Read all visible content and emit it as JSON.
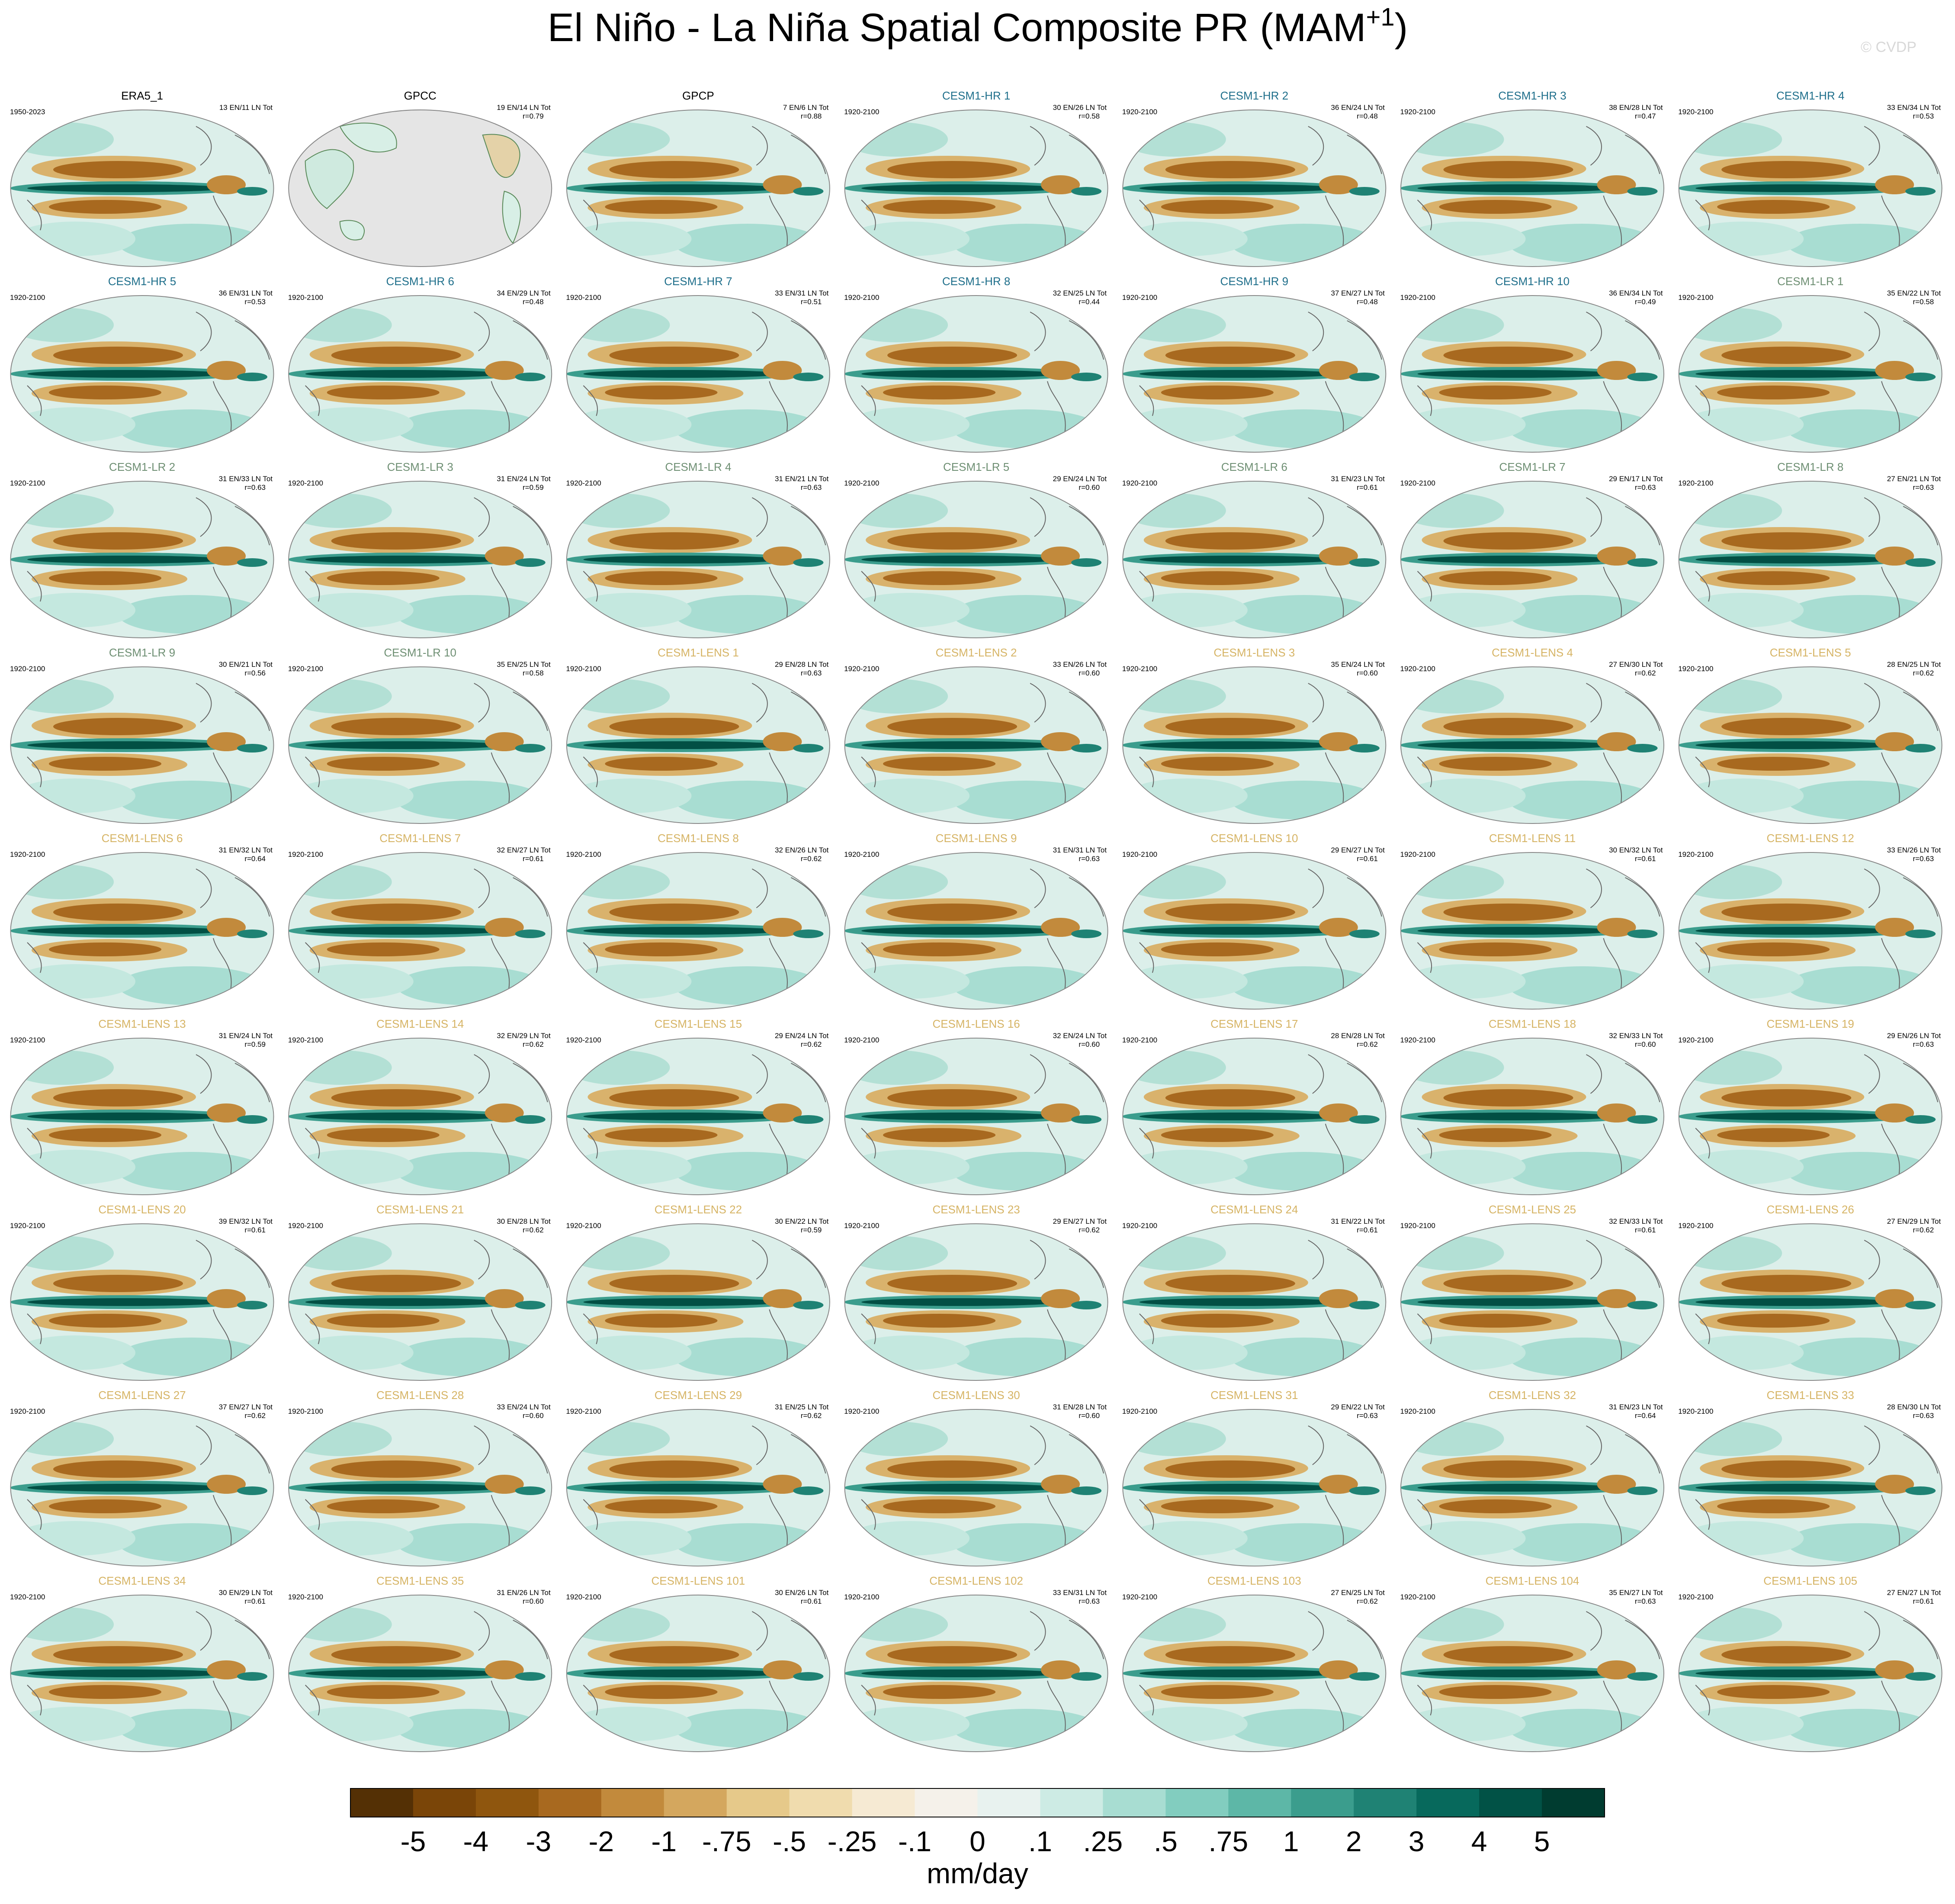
{
  "title": "El Niño - La Niña Spatial Composite PR (MAM",
  "title_superscript": "+1",
  "title_end": ")",
  "watermark": "© CVDP",
  "panels": [
    {
      "title": "ERA5_1",
      "period": "1950-2023",
      "counts": "13 EN/11 LN Tot",
      "color": "#000000"
    },
    {
      "title": "GPCC",
      "counts": "19 EN/14 LN Tot",
      "r": "r=0.79",
      "color": "#000000"
    },
    {
      "title": "GPCP",
      "counts": "7 EN/6 LN Tot",
      "r": "r=0.88",
      "color": "#000000"
    },
    {
      "title": "CESM1-HR 1",
      "period": "1920-2100",
      "counts": "30 EN/26 LN Tot",
      "r": "r=0.58",
      "color": "#1f6f8b"
    },
    {
      "title": "CESM1-HR 2",
      "period": "1920-2100",
      "counts": "36 EN/24 LN Tot",
      "r": "r=0.48",
      "color": "#1f6f8b"
    },
    {
      "title": "CESM1-HR 3",
      "period": "1920-2100",
      "counts": "38 EN/28 LN Tot",
      "r": "r=0.47",
      "color": "#1f6f8b"
    },
    {
      "title": "CESM1-HR 4",
      "period": "1920-2100",
      "counts": "33 EN/34 LN Tot",
      "r": "r=0.53",
      "color": "#1f6f8b"
    },
    {
      "title": "CESM1-HR 5",
      "period": "1920-2100",
      "counts": "36 EN/31 LN Tot",
      "r": "r=0.53",
      "color": "#1f6f8b"
    },
    {
      "title": "CESM1-HR 6",
      "period": "1920-2100",
      "counts": "34 EN/29 LN Tot",
      "r": "r=0.48",
      "color": "#1f6f8b"
    },
    {
      "title": "CESM1-HR 7",
      "period": "1920-2100",
      "counts": "33 EN/31 LN Tot",
      "r": "r=0.51",
      "color": "#1f6f8b"
    },
    {
      "title": "CESM1-HR 8",
      "period": "1920-2100",
      "counts": "32 EN/25 LN Tot",
      "r": "r=0.44",
      "color": "#1f6f8b"
    },
    {
      "title": "CESM1-HR 9",
      "period": "1920-2100",
      "counts": "37 EN/27 LN Tot",
      "r": "r=0.48",
      "color": "#1f6f8b"
    },
    {
      "title": "CESM1-HR 10",
      "period": "1920-2100",
      "counts": "36 EN/34 LN Tot",
      "r": "r=0.49",
      "color": "#1f6f8b"
    },
    {
      "title": "CESM1-LR 1",
      "period": "1920-2100",
      "counts": "35 EN/22 LN Tot",
      "r": "r=0.58",
      "color": "#6e8f73"
    },
    {
      "title": "CESM1-LR 2",
      "period": "1920-2100",
      "counts": "31 EN/33 LN Tot",
      "r": "r=0.63",
      "color": "#6e8f73"
    },
    {
      "title": "CESM1-LR 3",
      "period": "1920-2100",
      "counts": "31 EN/24 LN Tot",
      "r": "r=0.59",
      "color": "#6e8f73"
    },
    {
      "title": "CESM1-LR 4",
      "period": "1920-2100",
      "counts": "31 EN/21 LN Tot",
      "r": "r=0.63",
      "color": "#6e8f73"
    },
    {
      "title": "CESM1-LR 5",
      "period": "1920-2100",
      "counts": "29 EN/24 LN Tot",
      "r": "r=0.60",
      "color": "#6e8f73"
    },
    {
      "title": "CESM1-LR 6",
      "period": "1920-2100",
      "counts": "31 EN/23 LN Tot",
      "r": "r=0.61",
      "color": "#6e8f73"
    },
    {
      "title": "CESM1-LR 7",
      "period": "1920-2100",
      "counts": "29 EN/17 LN Tot",
      "r": "r=0.63",
      "color": "#6e8f73"
    },
    {
      "title": "CESM1-LR 8",
      "period": "1920-2100",
      "counts": "27 EN/21 LN Tot",
      "r": "r=0.63",
      "color": "#6e8f73"
    },
    {
      "title": "CESM1-LR 9",
      "period": "1920-2100",
      "counts": "30 EN/21 LN Tot",
      "r": "r=0.56",
      "color": "#6e8f73"
    },
    {
      "title": "CESM1-LR 10",
      "period": "1920-2100",
      "counts": "35 EN/25 LN Tot",
      "r": "r=0.58",
      "color": "#6e8f73"
    },
    {
      "title": "CESM1-LENS 1",
      "period": "1920-2100",
      "counts": "29 EN/28 LN Tot",
      "r": "r=0.63",
      "color": "#d6b465"
    },
    {
      "title": "CESM1-LENS 2",
      "period": "1920-2100",
      "counts": "33 EN/26 LN Tot",
      "r": "r=0.60",
      "color": "#d6b465"
    },
    {
      "title": "CESM1-LENS 3",
      "period": "1920-2100",
      "counts": "35 EN/24 LN Tot",
      "r": "r=0.60",
      "color": "#d6b465"
    },
    {
      "title": "CESM1-LENS 4",
      "period": "1920-2100",
      "counts": "27 EN/30 LN Tot",
      "r": "r=0.62",
      "color": "#d6b465"
    },
    {
      "title": "CESM1-LENS 5",
      "period": "1920-2100",
      "counts": "28 EN/25 LN Tot",
      "r": "r=0.62",
      "color": "#d6b465"
    },
    {
      "title": "CESM1-LENS 6",
      "period": "1920-2100",
      "counts": "31 EN/32 LN Tot",
      "r": "r=0.64",
      "color": "#d6b465"
    },
    {
      "title": "CESM1-LENS 7",
      "period": "1920-2100",
      "counts": "32 EN/27 LN Tot",
      "r": "r=0.61",
      "color": "#d6b465"
    },
    {
      "title": "CESM1-LENS 8",
      "period": "1920-2100",
      "counts": "32 EN/26 LN Tot",
      "r": "r=0.62",
      "color": "#d6b465"
    },
    {
      "title": "CESM1-LENS 9",
      "period": "1920-2100",
      "counts": "31 EN/31 LN Tot",
      "r": "r=0.63",
      "color": "#d6b465"
    },
    {
      "title": "CESM1-LENS 10",
      "period": "1920-2100",
      "counts": "29 EN/27 LN Tot",
      "r": "r=0.61",
      "color": "#d6b465"
    },
    {
      "title": "CESM1-LENS 11",
      "period": "1920-2100",
      "counts": "30 EN/32 LN Tot",
      "r": "r=0.61",
      "color": "#d6b465"
    },
    {
      "title": "CESM1-LENS 12",
      "period": "1920-2100",
      "counts": "33 EN/26 LN Tot",
      "r": "r=0.63",
      "color": "#d6b465"
    },
    {
      "title": "CESM1-LENS 13",
      "period": "1920-2100",
      "counts": "31 EN/24 LN Tot",
      "r": "r=0.59",
      "color": "#d6b465"
    },
    {
      "title": "CESM1-LENS 14",
      "period": "1920-2100",
      "counts": "32 EN/29 LN Tot",
      "r": "r=0.62",
      "color": "#d6b465"
    },
    {
      "title": "CESM1-LENS 15",
      "period": "1920-2100",
      "counts": "29 EN/24 LN Tot",
      "r": "r=0.62",
      "color": "#d6b465"
    },
    {
      "title": "CESM1-LENS 16",
      "period": "1920-2100",
      "counts": "32 EN/24 LN Tot",
      "r": "r=0.60",
      "color": "#d6b465"
    },
    {
      "title": "CESM1-LENS 17",
      "period": "1920-2100",
      "counts": "28 EN/28 LN Tot",
      "r": "r=0.62",
      "color": "#d6b465"
    },
    {
      "title": "CESM1-LENS 18",
      "period": "1920-2100",
      "counts": "32 EN/33 LN Tot",
      "r": "r=0.60",
      "color": "#d6b465"
    },
    {
      "title": "CESM1-LENS 19",
      "period": "1920-2100",
      "counts": "29 EN/26 LN Tot",
      "r": "r=0.63",
      "color": "#d6b465"
    },
    {
      "title": "CESM1-LENS 20",
      "period": "1920-2100",
      "counts": "39 EN/32 LN Tot",
      "r": "r=0.61",
      "color": "#d6b465"
    },
    {
      "title": "CESM1-LENS 21",
      "period": "1920-2100",
      "counts": "30 EN/28 LN Tot",
      "r": "r=0.62",
      "color": "#d6b465"
    },
    {
      "title": "CESM1-LENS 22",
      "period": "1920-2100",
      "counts": "30 EN/22 LN Tot",
      "r": "r=0.59",
      "color": "#d6b465"
    },
    {
      "title": "CESM1-LENS 23",
      "period": "1920-2100",
      "counts": "29 EN/27 LN Tot",
      "r": "r=0.62",
      "color": "#d6b465"
    },
    {
      "title": "CESM1-LENS 24",
      "period": "1920-2100",
      "counts": "31 EN/22 LN Tot",
      "r": "r=0.61",
      "color": "#d6b465"
    },
    {
      "title": "CESM1-LENS 25",
      "period": "1920-2100",
      "counts": "32 EN/33 LN Tot",
      "r": "r=0.61",
      "color": "#d6b465"
    },
    {
      "title": "CESM1-LENS 26",
      "period": "1920-2100",
      "counts": "27 EN/29 LN Tot",
      "r": "r=0.62",
      "color": "#d6b465"
    },
    {
      "title": "CESM1-LENS 27",
      "period": "1920-2100",
      "counts": "37 EN/27 LN Tot",
      "r": "r=0.62",
      "color": "#d6b465"
    },
    {
      "title": "CESM1-LENS 28",
      "period": "1920-2100",
      "counts": "33 EN/24 LN Tot",
      "r": "r=0.60",
      "color": "#d6b465"
    },
    {
      "title": "CESM1-LENS 29",
      "period": "1920-2100",
      "counts": "31 EN/25 LN Tot",
      "r": "r=0.62",
      "color": "#d6b465"
    },
    {
      "title": "CESM1-LENS 30",
      "period": "1920-2100",
      "counts": "31 EN/28 LN Tot",
      "r": "r=0.60",
      "color": "#d6b465"
    },
    {
      "title": "CESM1-LENS 31",
      "period": "1920-2100",
      "counts": "29 EN/22 LN Tot",
      "r": "r=0.63",
      "color": "#d6b465"
    },
    {
      "title": "CESM1-LENS 32",
      "period": "1920-2100",
      "counts": "31 EN/23 LN Tot",
      "r": "r=0.64",
      "color": "#d6b465"
    },
    {
      "title": "CESM1-LENS 33",
      "period": "1920-2100",
      "counts": "28 EN/30 LN Tot",
      "r": "r=0.63",
      "color": "#d6b465"
    },
    {
      "title": "CESM1-LENS 34",
      "period": "1920-2100",
      "counts": "30 EN/29 LN Tot",
      "r": "r=0.61",
      "color": "#d6b465"
    },
    {
      "title": "CESM1-LENS 35",
      "period": "1920-2100",
      "counts": "31 EN/26 LN Tot",
      "r": "r=0.60",
      "color": "#d6b465"
    },
    {
      "title": "CESM1-LENS 101",
      "period": "1920-2100",
      "counts": "30 EN/26 LN Tot",
      "r": "r=0.61",
      "color": "#d6b465"
    },
    {
      "title": "CESM1-LENS 102",
      "period": "1920-2100",
      "counts": "33 EN/31 LN Tot",
      "r": "r=0.63",
      "color": "#d6b465"
    },
    {
      "title": "CESM1-LENS 103",
      "period": "1920-2100",
      "counts": "27 EN/25 LN Tot",
      "r": "r=0.62",
      "color": "#d6b465"
    },
    {
      "title": "CESM1-LENS 104",
      "period": "1920-2100",
      "counts": "35 EN/27 LN Tot",
      "r": "r=0.63",
      "color": "#d6b465"
    },
    {
      "title": "CESM1-LENS 105",
      "period": "1920-2100",
      "counts": "27 EN/27 LN Tot",
      "r": "r=0.61",
      "color": "#d6b465"
    }
  ],
  "colorbar": {
    "colors": [
      "#543005",
      "#7a4508",
      "#8f560e",
      "#a8691f",
      "#c28a3c",
      "#d4a75e",
      "#e6c98a",
      "#f0dcae",
      "#f6ead3",
      "#f5f1ea",
      "#e8f2ef",
      "#cdebe4",
      "#a8ddd2",
      "#82cdbf",
      "#5db7a7",
      "#3b9d8d",
      "#1f8274",
      "#07695c",
      "#015246",
      "#003c30"
    ],
    "labels": [
      "-5",
      "-4",
      "-3",
      "-2",
      "-1",
      "-.75",
      "-.5",
      "-.25",
      "-.1",
      "0",
      ".1",
      ".25",
      ".5",
      ".75",
      "1",
      "2",
      "3",
      "4",
      "5"
    ],
    "unit": "mm/day"
  }
}
